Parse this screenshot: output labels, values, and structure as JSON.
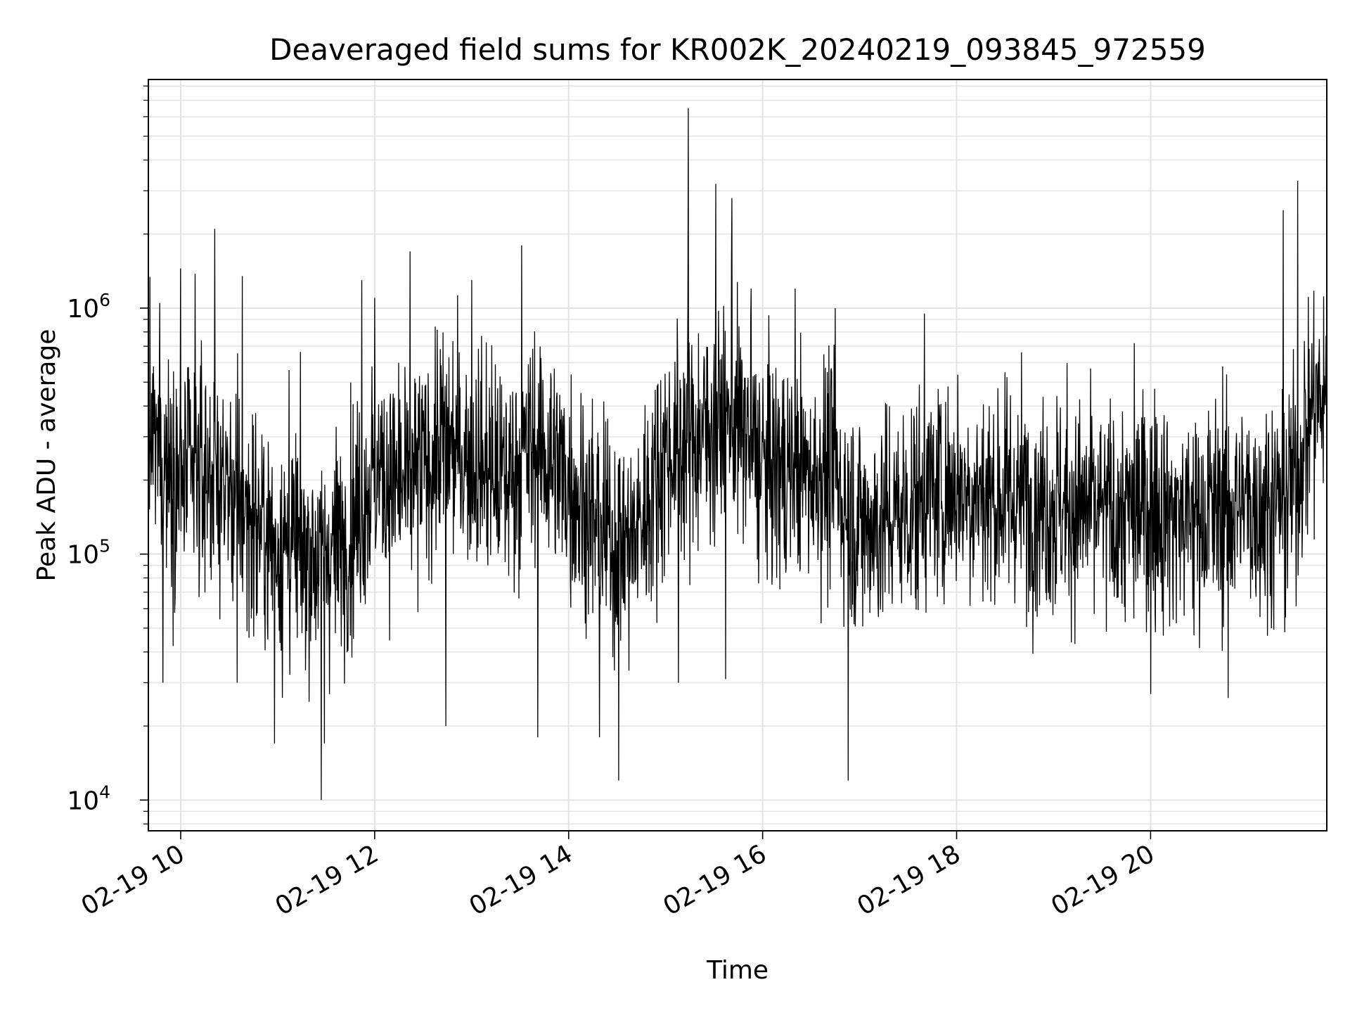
{
  "chart_data": {
    "type": "line",
    "title": "Deaveraged field sums for KR002K_20240219_093845_972559",
    "xlabel": "Time",
    "ylabel": "Peak ADU - average",
    "yscale": "log",
    "grid": true,
    "legend": "none",
    "line_color": "#000000",
    "xlim": [
      "02-19 09:40",
      "02-19 21:49"
    ],
    "ylim": [
      7500,
      8500000
    ],
    "x_ticks": [
      {
        "t": "02-19 10:00",
        "label": "02-19 10"
      },
      {
        "t": "02-19 12:00",
        "label": "02-19 12"
      },
      {
        "t": "02-19 14:00",
        "label": "02-19 14"
      },
      {
        "t": "02-19 16:00",
        "label": "02-19 16"
      },
      {
        "t": "02-19 18:00",
        "label": "02-19 18"
      },
      {
        "t": "02-19 20:00",
        "label": "02-19 20"
      }
    ],
    "y_ticks": [
      {
        "value": 10000,
        "base": "10",
        "exp": "4"
      },
      {
        "value": 100000,
        "base": "10",
        "exp": "5"
      },
      {
        "value": 1000000,
        "base": "10",
        "exp": "6"
      }
    ],
    "trend_profile": {
      "times": [
        "02-19 09:40",
        "02-19 10:00",
        "02-19 10:20",
        "02-19 10:40",
        "02-19 11:00",
        "02-19 11:20",
        "02-19 11:40",
        "02-19 12:00",
        "02-19 12:20",
        "02-19 12:40",
        "02-19 13:00",
        "02-19 13:20",
        "02-19 13:40",
        "02-19 14:00",
        "02-19 14:20",
        "02-19 14:40",
        "02-19 15:00",
        "02-19 15:20",
        "02-19 15:40",
        "02-19 16:00",
        "02-19 16:20",
        "02-19 16:40",
        "02-19 17:00",
        "02-19 17:20",
        "02-19 17:40",
        "02-19 18:00",
        "02-19 18:20",
        "02-19 18:40",
        "02-19 19:00",
        "02-19 19:20",
        "02-19 19:40",
        "02-19 20:00",
        "02-19 20:20",
        "02-19 20:40",
        "02-19 21:00",
        "02-19 21:20",
        "02-19 21:30",
        "02-19 21:40",
        "02-19 21:49"
      ],
      "median": [
        300000,
        200000,
        220000,
        150000,
        110000,
        100000,
        110000,
        220000,
        180000,
        280000,
        250000,
        200000,
        280000,
        200000,
        120000,
        110000,
        260000,
        300000,
        380000,
        230000,
        210000,
        220000,
        130000,
        140000,
        170000,
        190000,
        170000,
        170000,
        160000,
        150000,
        140000,
        160000,
        140000,
        150000,
        160000,
        160000,
        200000,
        420000,
        400000
      ]
    },
    "spikes": [
      {
        "t": "02-19 09:47",
        "value": 1050000
      },
      {
        "t": "02-19 09:49",
        "value": 30000
      },
      {
        "t": "02-19 10:00",
        "value": 1450000
      },
      {
        "t": "02-19 10:09",
        "value": 1380000
      },
      {
        "t": "02-19 10:21",
        "value": 2100000
      },
      {
        "t": "02-19 10:38",
        "value": 1350000
      },
      {
        "t": "02-19 10:35",
        "value": 30000
      },
      {
        "t": "02-19 10:58",
        "value": 17000
      },
      {
        "t": "02-19 11:07",
        "value": 560000
      },
      {
        "t": "02-19 11:27",
        "value": 10000
      },
      {
        "t": "02-19 11:29",
        "value": 17000
      },
      {
        "t": "02-19 11:52",
        "value": 1300000
      },
      {
        "t": "02-19 12:00",
        "value": 1100000
      },
      {
        "t": "02-19 12:22",
        "value": 1700000
      },
      {
        "t": "02-19 12:44",
        "value": 20000
      },
      {
        "t": "02-19 13:00",
        "value": 1300000
      },
      {
        "t": "02-19 13:31",
        "value": 1800000
      },
      {
        "t": "02-19 13:41",
        "value": 18000
      },
      {
        "t": "02-19 14:19",
        "value": 18000
      },
      {
        "t": "02-19 14:31",
        "value": 12000
      },
      {
        "t": "02-19 15:08",
        "value": 30000
      },
      {
        "t": "02-19 15:14",
        "value": 6500000
      },
      {
        "t": "02-19 15:31",
        "value": 3200000
      },
      {
        "t": "02-19 15:37",
        "value": 31000
      },
      {
        "t": "02-19 15:41",
        "value": 2800000
      },
      {
        "t": "02-19 15:53",
        "value": 1200000
      },
      {
        "t": "02-19 16:20",
        "value": 1200000
      },
      {
        "t": "02-19 16:45",
        "value": 1000000
      },
      {
        "t": "02-19 16:53",
        "value": 12000
      },
      {
        "t": "02-19 17:40",
        "value": 950000
      },
      {
        "t": "02-19 19:50",
        "value": 720000
      },
      {
        "t": "02-19 20:00",
        "value": 27000
      },
      {
        "t": "02-19 20:48",
        "value": 26000
      },
      {
        "t": "02-19 21:22",
        "value": 2500000
      },
      {
        "t": "02-19 21:31",
        "value": 3300000
      }
    ]
  }
}
